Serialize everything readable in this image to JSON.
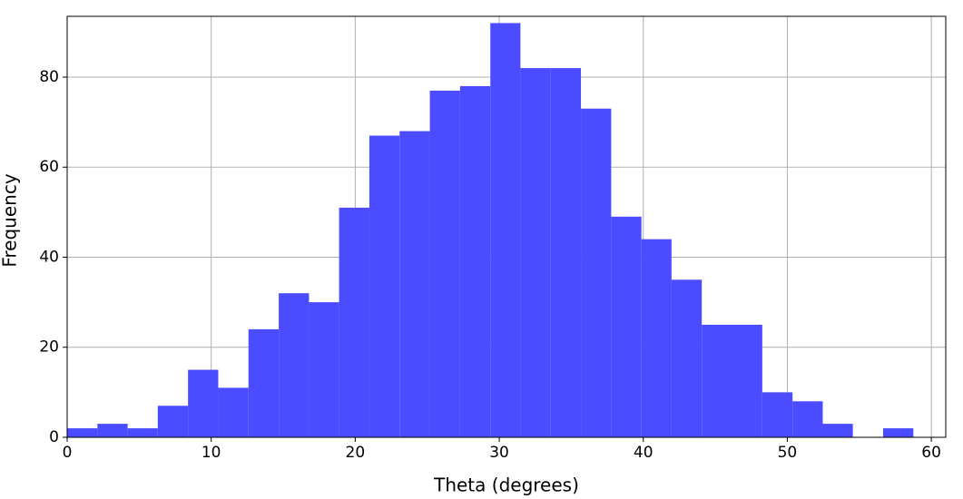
{
  "chart_data": {
    "type": "histogram",
    "xlabel": "Theta (degrees)",
    "ylabel": "Frequency",
    "bins": [
      0,
      2.1,
      4.2,
      6.29,
      8.39,
      10.49,
      12.59,
      14.69,
      16.79,
      18.88,
      20.98,
      23.08,
      25.18,
      27.28,
      29.38,
      31.47,
      33.57,
      35.67,
      37.77,
      39.87,
      41.96,
      44.06,
      46.16,
      48.26,
      50.36,
      52.46,
      54.55,
      56.65,
      58.75
    ],
    "values": [
      2,
      3,
      2,
      7,
      15,
      11,
      24,
      32,
      30,
      51,
      67,
      68,
      77,
      78,
      92,
      82,
      82,
      73,
      49,
      44,
      35,
      25,
      25,
      10,
      8,
      3,
      0,
      2
    ],
    "color": "#4b4bff",
    "xlim": [
      0,
      61
    ],
    "xticks": [
      0,
      10,
      20,
      30,
      40,
      50,
      60
    ],
    "ylim": [
      0,
      93.5
    ],
    "yticks": [
      0,
      20,
      40,
      60,
      80
    ],
    "grid": true
  }
}
